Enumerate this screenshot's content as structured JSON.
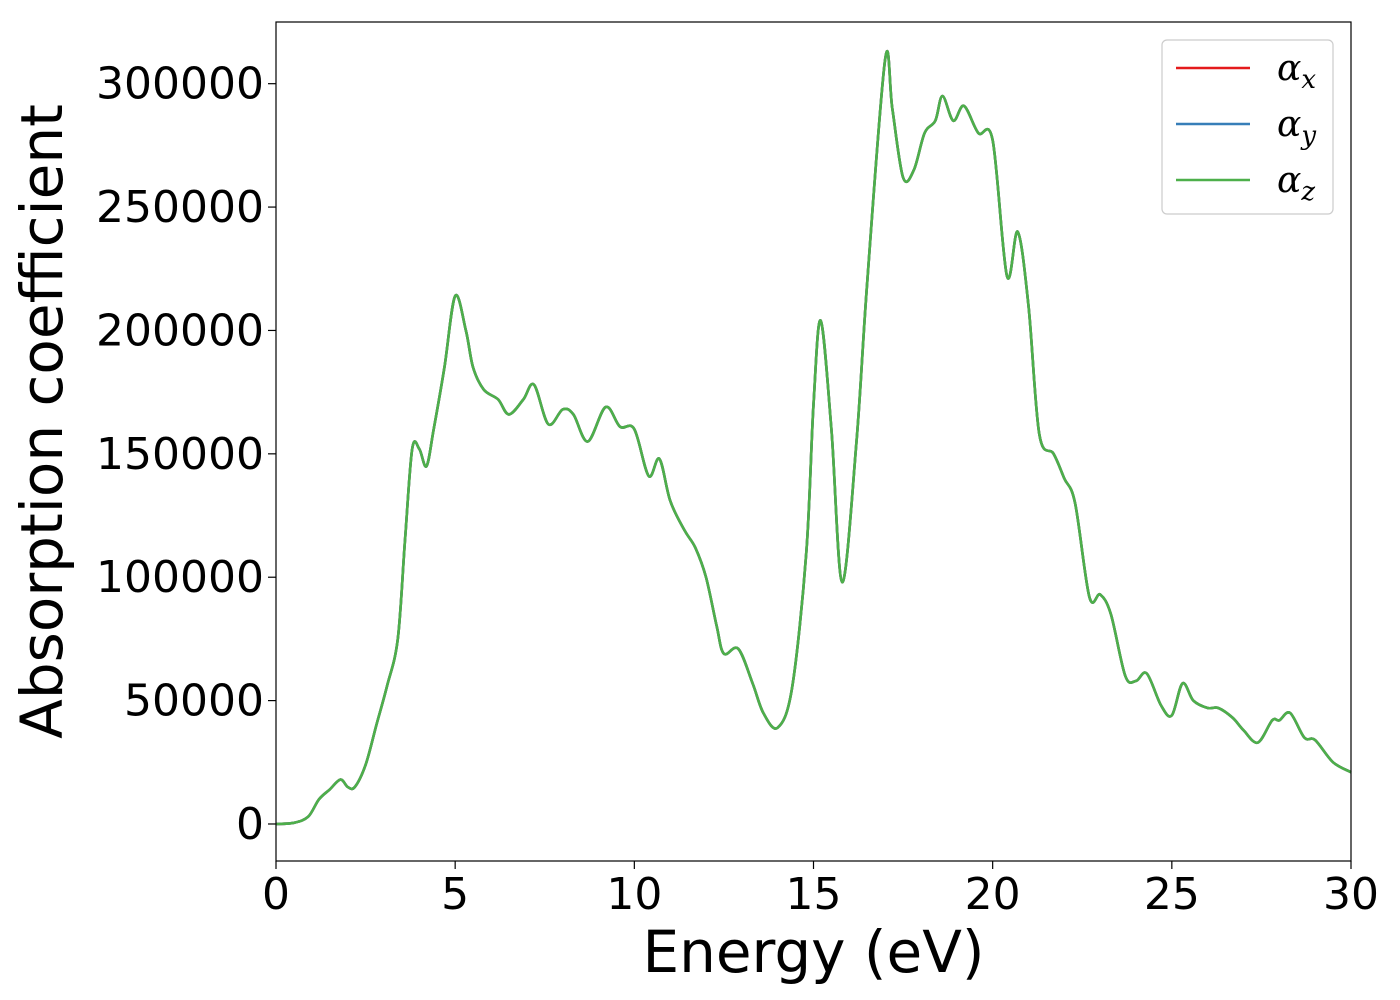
{
  "chart_data": {
    "type": "line",
    "title": "",
    "xlabel": "Energy (eV)",
    "ylabel": "Absorption coefficient",
    "xlim": [
      0,
      30
    ],
    "ylim": [
      -15000,
      325000
    ],
    "xticks": [
      0,
      5,
      10,
      15,
      20,
      25,
      30
    ],
    "yticks": [
      0,
      50000,
      100000,
      150000,
      200000,
      250000,
      300000
    ],
    "grid": false,
    "legend_position": "top-right",
    "x": [
      0,
      0.5,
      0.9,
      1.2,
      1.5,
      1.8,
      2.0,
      2.2,
      2.5,
      2.8,
      3.1,
      3.4,
      3.6,
      3.8,
      4.0,
      4.2,
      4.4,
      4.7,
      5.0,
      5.3,
      5.5,
      5.8,
      6.2,
      6.5,
      6.9,
      7.2,
      7.6,
      8.0,
      8.3,
      8.7,
      9.2,
      9.6,
      10.0,
      10.4,
      10.7,
      11.0,
      11.4,
      11.7,
      12.0,
      12.3,
      12.5,
      12.9,
      13.3,
      13.6,
      14.0,
      14.4,
      14.8,
      15.0,
      15.2,
      15.5,
      15.8,
      16.2,
      16.5,
      17.0,
      17.2,
      17.5,
      17.8,
      18.1,
      18.4,
      18.6,
      18.9,
      19.2,
      19.6,
      20.0,
      20.4,
      20.7,
      21.0,
      21.3,
      21.7,
      22.0,
      22.3,
      22.7,
      23.0,
      23.3,
      23.7,
      24.0,
      24.3,
      24.7,
      25.0,
      25.3,
      25.6,
      26.0,
      26.3,
      26.7,
      27.0,
      27.4,
      27.8,
      28.0,
      28.3,
      28.7,
      29.0,
      29.5,
      30.0
    ],
    "series": [
      {
        "name": "αx",
        "color": "#e41a1c",
        "values": [
          0,
          500,
          3000,
          10000,
          14000,
          18000,
          15000,
          15000,
          24000,
          40000,
          56000,
          75000,
          115000,
          152000,
          152000,
          145000,
          160000,
          185000,
          214000,
          200000,
          185000,
          176000,
          172000,
          166000,
          172000,
          178000,
          162000,
          168000,
          166000,
          155000,
          169000,
          161000,
          160000,
          141000,
          148000,
          131000,
          119000,
          112000,
          100000,
          80000,
          69000,
          71000,
          57000,
          45000,
          39000,
          55000,
          110000,
          170000,
          204000,
          160000,
          98000,
          155000,
          220000,
          310000,
          290000,
          262000,
          265000,
          280000,
          285000,
          295000,
          285000,
          291000,
          280000,
          277000,
          222000,
          240000,
          210000,
          158000,
          150000,
          140000,
          130000,
          92000,
          93000,
          85000,
          60000,
          58000,
          61000,
          48000,
          44000,
          57000,
          50000,
          47000,
          47000,
          43000,
          38000,
          33000,
          42000,
          42000,
          45000,
          35000,
          34000,
          25000,
          21000
        ]
      },
      {
        "name": "αy",
        "color": "#377eb8",
        "values": [
          0,
          500,
          3000,
          10000,
          14000,
          18000,
          15000,
          15000,
          24000,
          40000,
          56000,
          75000,
          115000,
          152000,
          152000,
          145000,
          160000,
          185000,
          214000,
          200000,
          185000,
          176000,
          172000,
          166000,
          172000,
          178000,
          162000,
          168000,
          166000,
          155000,
          169000,
          161000,
          160000,
          141000,
          148000,
          131000,
          119000,
          112000,
          100000,
          80000,
          69000,
          71000,
          57000,
          45000,
          39000,
          55000,
          110000,
          170000,
          204000,
          160000,
          98000,
          155000,
          220000,
          310000,
          290000,
          262000,
          265000,
          280000,
          285000,
          295000,
          285000,
          291000,
          280000,
          277000,
          222000,
          240000,
          210000,
          158000,
          150000,
          140000,
          130000,
          92000,
          93000,
          85000,
          60000,
          58000,
          61000,
          48000,
          44000,
          57000,
          50000,
          47000,
          47000,
          43000,
          38000,
          33000,
          42000,
          42000,
          45000,
          35000,
          34000,
          25000,
          21000
        ]
      },
      {
        "name": "αz",
        "color": "#4daf4a",
        "values": [
          0,
          500,
          3000,
          10000,
          14000,
          18000,
          15000,
          15000,
          24000,
          40000,
          56000,
          75000,
          115000,
          152000,
          152000,
          145000,
          160000,
          185000,
          214000,
          200000,
          185000,
          176000,
          172000,
          166000,
          172000,
          178000,
          162000,
          168000,
          166000,
          155000,
          169000,
          161000,
          160000,
          141000,
          148000,
          131000,
          119000,
          112000,
          100000,
          80000,
          69000,
          71000,
          57000,
          45000,
          39000,
          55000,
          110000,
          170000,
          204000,
          160000,
          98000,
          155000,
          220000,
          310000,
          290000,
          262000,
          265000,
          280000,
          285000,
          295000,
          285000,
          291000,
          280000,
          277000,
          222000,
          240000,
          210000,
          158000,
          150000,
          140000,
          130000,
          92000,
          93000,
          85000,
          60000,
          58000,
          61000,
          48000,
          44000,
          57000,
          50000,
          47000,
          47000,
          43000,
          38000,
          33000,
          42000,
          42000,
          45000,
          35000,
          34000,
          25000,
          21000
        ]
      }
    ]
  },
  "legend": {
    "entries": [
      {
        "base": "α",
        "sub": "x",
        "color": "#e41a1c"
      },
      {
        "base": "α",
        "sub": "y",
        "color": "#377eb8"
      },
      {
        "base": "α",
        "sub": "z",
        "color": "#4daf4a"
      }
    ]
  }
}
